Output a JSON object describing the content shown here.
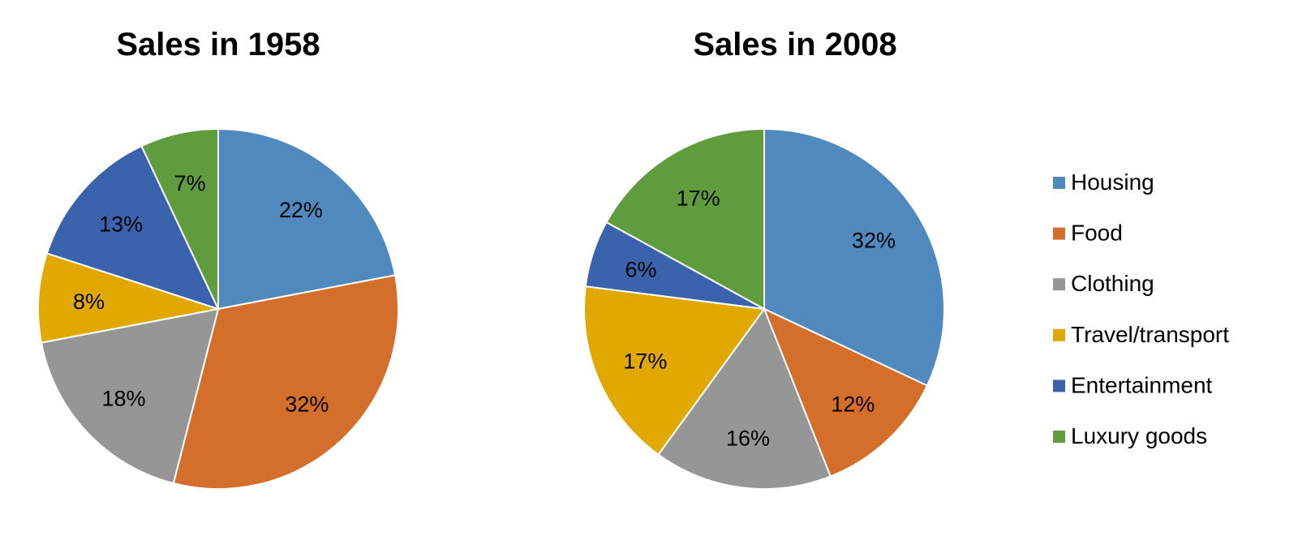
{
  "chart_data": [
    {
      "type": "pie",
      "title": "Sales in 1958",
      "categories": [
        "Housing",
        "Food",
        "Clothing",
        "Travel/transport",
        "Entertainment",
        "Luxury goods"
      ],
      "values": [
        22,
        32,
        18,
        8,
        13,
        7
      ],
      "labels": [
        "22%",
        "32%",
        "18%",
        "8%",
        "13%",
        "7%"
      ]
    },
    {
      "type": "pie",
      "title": "Sales in 2008",
      "categories": [
        "Housing",
        "Food",
        "Clothing",
        "Travel/transport",
        "Entertainment",
        "Luxury goods"
      ],
      "values": [
        32,
        12,
        16,
        17,
        6,
        17
      ],
      "labels": [
        "32%",
        "12%",
        "16%",
        "17%",
        "6%",
        "17%"
      ]
    }
  ],
  "legend": {
    "position": "right",
    "items": [
      "Housing",
      "Food",
      "Clothing",
      "Travel/transport",
      "Entertainment",
      "Luxury goods"
    ]
  },
  "colors": [
    "#4f89bd",
    "#d36f2b",
    "#969696",
    "#e1a900",
    "#3b62ad",
    "#5f9c3e"
  ]
}
